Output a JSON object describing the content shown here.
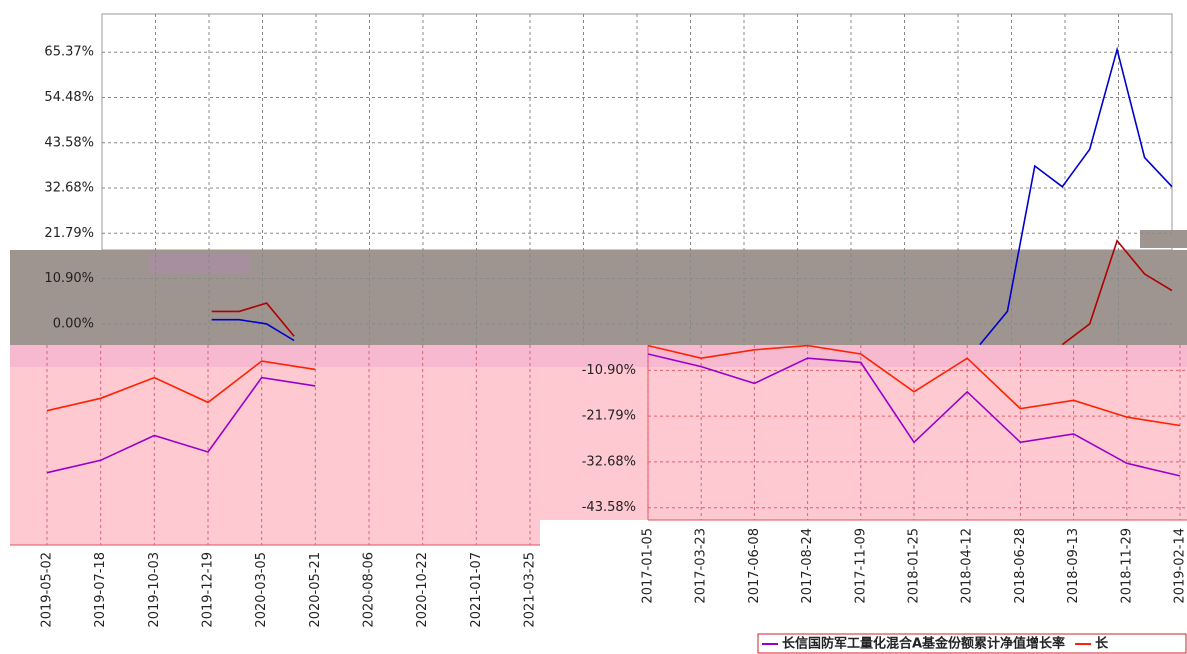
{
  "chart_data": [
    {
      "type": "line",
      "series": [
        {
          "name": null,
          "color": "#0000cc",
          "values": [
            null,
            null,
            null,
            null,
            1,
            1,
            0,
            -4,
            null,
            null,
            null,
            null,
            null,
            null,
            null,
            null,
            null,
            null,
            null,
            null,
            null,
            null,
            null,
            null,
            null,
            null,
            null,
            null,
            null,
            null,
            null,
            null,
            -5,
            3,
            38,
            33,
            42,
            66,
            40,
            33
          ]
        },
        {
          "name": null,
          "color": "#b00000",
          "values": [
            null,
            null,
            null,
            null,
            3,
            3,
            5,
            -3,
            null,
            null,
            null,
            null,
            null,
            null,
            null,
            null,
            null,
            null,
            null,
            null,
            null,
            null,
            null,
            null,
            null,
            null,
            null,
            null,
            null,
            null,
            null,
            null,
            null,
            null,
            null,
            -5,
            0,
            20,
            12,
            8
          ]
        }
      ],
      "ylim": [
        -5.09,
        74.57
      ],
      "yticks": [
        {
          "value": 65.37,
          "label": "65.37%"
        },
        {
          "value": 54.48,
          "label": "54.48%"
        },
        {
          "value": 43.58,
          "label": "43.58%"
        },
        {
          "value": 32.68,
          "label": "32.68%"
        },
        {
          "value": 21.79,
          "label": "21.79%"
        },
        {
          "value": 10.9,
          "label": "10.90%"
        },
        {
          "value": 0,
          "label": "0.00%"
        }
      ],
      "grid": true
    },
    {
      "type": "line",
      "categories": [
        "2019-05-02",
        "2019-07-18",
        "2019-10-03",
        "2019-12-19",
        "2020-03-05",
        "2020-05-21",
        "2020-08-06",
        "2020-10-22",
        "2021-01-07",
        "2021-03-25"
      ],
      "series": [
        {
          "name": null,
          "color": "#9900cc",
          "values": [
            -35,
            -32,
            -26,
            -30,
            -12,
            -14,
            null,
            null,
            null,
            null
          ]
        },
        {
          "name": null,
          "color": "#ff2200",
          "values": [
            -20,
            -17,
            -12,
            -18,
            -8,
            -10,
            null,
            null,
            null,
            null
          ]
        }
      ],
      "ylim": [
        -52.5,
        -4.1
      ],
      "grid": true
    },
    {
      "type": "line",
      "categories": [
        "2017-01-05",
        "2017-03-23",
        "2017-06-08",
        "2017-08-24",
        "2017-11-09",
        "2018-01-25",
        "2018-04-12",
        "2018-06-28",
        "2018-09-13",
        "2018-11-29",
        "2019-02-14"
      ],
      "series": [
        {
          "name": "长信国防军工量化混合A基金份额累计净值增长率",
          "color": "#9900cc",
          "values": [
            -7,
            -10,
            -14,
            -8,
            -9,
            -28,
            -16,
            -28,
            -26,
            -33,
            -36
          ]
        },
        {
          "name": "长",
          "color": "#ff2200",
          "values": [
            -5,
            -8,
            -6,
            -5,
            -7,
            -16,
            -8,
            -20,
            -18,
            -22,
            -24
          ]
        }
      ],
      "ylim": [
        -46.5,
        -4.85
      ],
      "yticks": [
        {
          "value": -10.9,
          "label": "-10.90%"
        },
        {
          "value": -21.79,
          "label": "-21.79%"
        },
        {
          "value": -32.68,
          "label": "-32.68%"
        },
        {
          "value": -43.58,
          "label": "-43.58%"
        }
      ],
      "grid": true
    }
  ]
}
